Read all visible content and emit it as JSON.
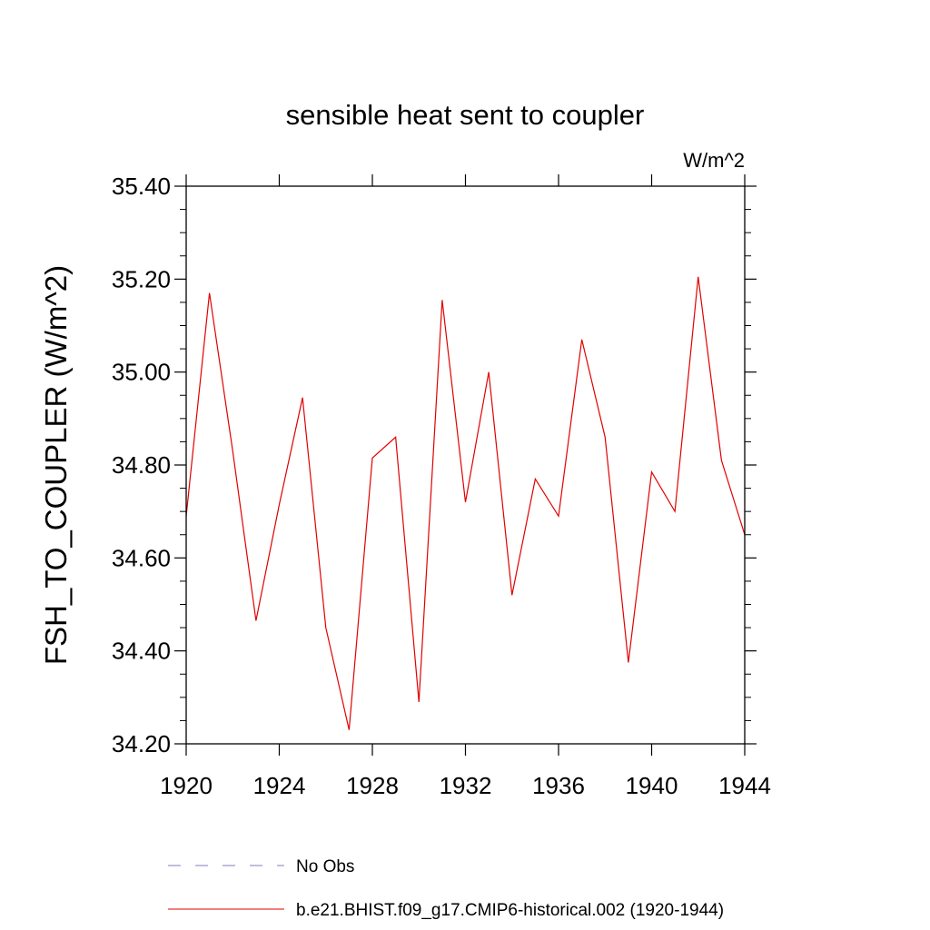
{
  "chart_data": {
    "type": "line",
    "title": "sensible heat sent to coupler",
    "units": "W/m^2",
    "ylabel": "FSH_TO_COUPLER  (W/m^2)",
    "xlabel": "",
    "xlim": [
      1920,
      1944
    ],
    "ylim": [
      34.2,
      35.4
    ],
    "x_ticks": [
      "1920",
      "1924",
      "1928",
      "1932",
      "1936",
      "1940",
      "1944"
    ],
    "y_ticks": [
      "34.20",
      "34.40",
      "34.60",
      "34.80",
      "35.00",
      "35.20",
      "35.40"
    ],
    "grid": false,
    "legend_position": "bottom",
    "series": [
      {
        "name": "No Obs",
        "color": "#7f7fbf",
        "style": "dashed",
        "x": [],
        "values": []
      },
      {
        "name": "b.e21.BHIST.f09_g17.CMIP6-historical.002 (1920-1944)",
        "color": "#e00000",
        "style": "solid",
        "x": [
          1920,
          1921,
          1922,
          1923,
          1924,
          1925,
          1926,
          1927,
          1928,
          1929,
          1930,
          1931,
          1932,
          1933,
          1934,
          1935,
          1936,
          1937,
          1938,
          1939,
          1940,
          1941,
          1942,
          1943,
          1944
        ],
        "values": [
          34.69,
          35.17,
          34.83,
          34.465,
          34.715,
          34.945,
          34.45,
          34.23,
          34.815,
          34.86,
          34.29,
          35.155,
          34.72,
          35.0,
          34.52,
          34.77,
          34.69,
          35.07,
          34.86,
          34.375,
          34.785,
          34.7,
          35.205,
          34.81,
          34.65
        ]
      }
    ]
  }
}
